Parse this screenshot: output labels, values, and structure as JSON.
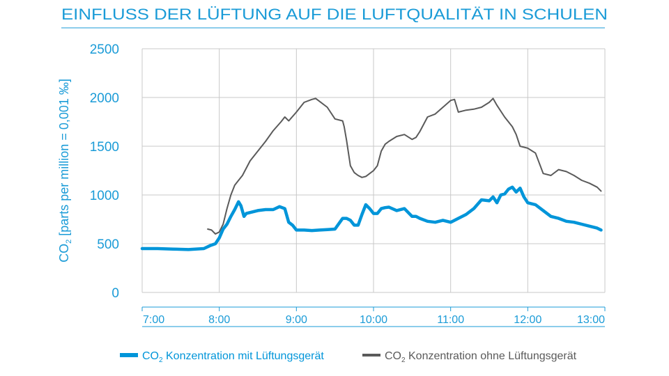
{
  "chart_data": {
    "type": "line",
    "title": "EINFLUSS DER LÜFTUNG AUF DIE LUFTQUALITÄT IN SCHULEN",
    "ylabel_prefix": "CO",
    "ylabel_sub": "2",
    "ylabel_rest": " [parts per million = 0,001 ‰]",
    "y_ticks": [
      "0",
      "500",
      "1000",
      "1500",
      "2000",
      "2500"
    ],
    "ylim": [
      0,
      2500
    ],
    "x_ticks": [
      "7:00",
      "8:00",
      "9:00",
      "10:00",
      "11:00",
      "12:00",
      "13:00"
    ],
    "x_unit": "hours",
    "xlim": [
      7.0,
      13.0
    ],
    "grid": "vertical and horizontal",
    "legend_position": "bottom",
    "colors": {
      "title": "#1a9bd7",
      "axis_text": "#1a9bd7",
      "with_device": "#0095d9",
      "without_device": "#5a5a5a",
      "grid": "#c8c8c8"
    },
    "series": [
      {
        "name_prefix": "CO",
        "name_sub": "2",
        "name_rest": " Konzentration mit Lüftungsgerät",
        "x": [
          7.0,
          7.2,
          7.4,
          7.6,
          7.8,
          7.88,
          7.95,
          8.0,
          8.05,
          8.1,
          8.15,
          8.2,
          8.25,
          8.28,
          8.32,
          8.35,
          8.4,
          8.45,
          8.5,
          8.6,
          8.7,
          8.78,
          8.85,
          8.9,
          8.95,
          9.0,
          9.1,
          9.2,
          9.3,
          9.4,
          9.5,
          9.6,
          9.65,
          9.7,
          9.75,
          9.8,
          9.85,
          9.9,
          9.95,
          10.0,
          10.05,
          10.1,
          10.15,
          10.2,
          10.3,
          10.4,
          10.5,
          10.55,
          10.6,
          10.7,
          10.8,
          10.9,
          11.0,
          11.1,
          11.2,
          11.3,
          11.4,
          11.5,
          11.55,
          11.6,
          11.65,
          11.7,
          11.75,
          11.8,
          11.85,
          11.9,
          11.95,
          12.0,
          12.1,
          12.2,
          12.3,
          12.4,
          12.5,
          12.6,
          12.7,
          12.8,
          12.9,
          12.95
        ],
        "y": [
          450,
          450,
          445,
          440,
          450,
          480,
          500,
          560,
          650,
          700,
          780,
          850,
          930,
          890,
          780,
          810,
          820,
          830,
          840,
          850,
          850,
          880,
          860,
          720,
          690,
          640,
          640,
          635,
          640,
          645,
          650,
          760,
          760,
          740,
          690,
          690,
          800,
          900,
          860,
          810,
          810,
          860,
          870,
          875,
          840,
          860,
          780,
          780,
          760,
          730,
          720,
          740,
          720,
          760,
          800,
          860,
          950,
          940,
          980,
          920,
          1000,
          1010,
          1060,
          1080,
          1030,
          1070,
          980,
          920,
          900,
          840,
          780,
          760,
          730,
          720,
          700,
          680,
          660,
          640
        ]
      },
      {
        "name_prefix": "CO",
        "name_sub": "2",
        "name_rest": " Konzentration ohne Lüftungsgerät",
        "x": [
          7.85,
          7.9,
          7.95,
          8.0,
          8.05,
          8.1,
          8.15,
          8.2,
          8.25,
          8.3,
          8.4,
          8.5,
          8.6,
          8.7,
          8.8,
          8.85,
          8.9,
          9.0,
          9.1,
          9.2,
          9.25,
          9.3,
          9.4,
          9.5,
          9.6,
          9.62,
          9.65,
          9.7,
          9.75,
          9.8,
          9.85,
          9.9,
          9.95,
          10.0,
          10.05,
          10.1,
          10.15,
          10.2,
          10.3,
          10.4,
          10.5,
          10.55,
          10.6,
          10.7,
          10.8,
          10.9,
          11.0,
          11.05,
          11.1,
          11.2,
          11.3,
          11.4,
          11.5,
          11.55,
          11.6,
          11.7,
          11.8,
          11.85,
          11.9,
          12.0,
          12.1,
          12.2,
          12.3,
          12.4,
          12.5,
          12.6,
          12.7,
          12.8,
          12.9,
          12.95
        ],
        "y": [
          650,
          640,
          600,
          620,
          700,
          860,
          1000,
          1100,
          1150,
          1200,
          1350,
          1450,
          1550,
          1660,
          1750,
          1800,
          1760,
          1850,
          1950,
          1980,
          1990,
          1960,
          1900,
          1780,
          1760,
          1700,
          1560,
          1300,
          1230,
          1200,
          1180,
          1190,
          1220,
          1250,
          1300,
          1450,
          1520,
          1550,
          1600,
          1620,
          1570,
          1590,
          1650,
          1800,
          1830,
          1900,
          1970,
          1980,
          1850,
          1870,
          1880,
          1900,
          1950,
          1990,
          1920,
          1800,
          1700,
          1620,
          1500,
          1480,
          1430,
          1220,
          1200,
          1260,
          1240,
          1200,
          1150,
          1120,
          1080,
          1040
        ]
      }
    ]
  }
}
